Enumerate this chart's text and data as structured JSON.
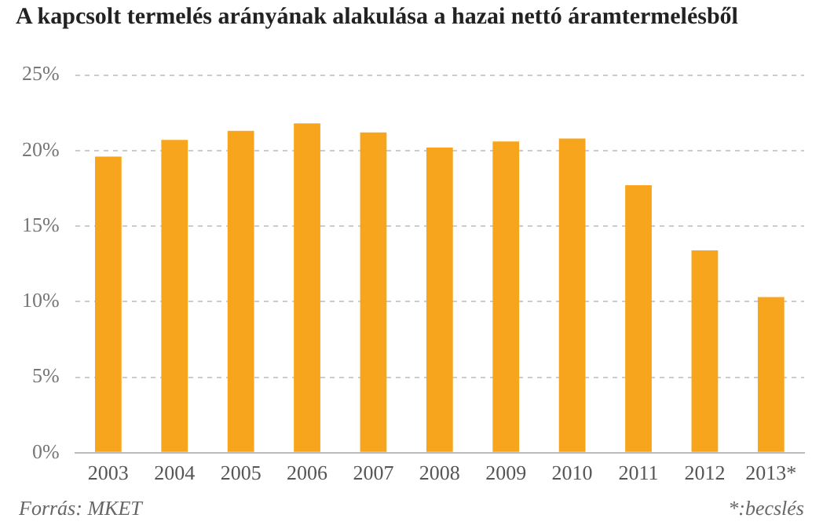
{
  "chart_data": {
    "type": "bar",
    "title": "A kapcsolt termelés arányának alakulása a hazai nettó áramtermelésből",
    "categories": [
      "2003",
      "2004",
      "2005",
      "2006",
      "2007",
      "2008",
      "2009",
      "2010",
      "2011",
      "2012",
      "2013*"
    ],
    "values": [
      19.6,
      20.7,
      21.3,
      21.8,
      21.2,
      20.2,
      20.6,
      20.8,
      17.7,
      13.4,
      10.3
    ],
    "color": "#f7a51d",
    "ylim": [
      0,
      25
    ],
    "yticks": [
      {
        "value": 0,
        "label": "0%"
      },
      {
        "value": 5,
        "label": "5%"
      },
      {
        "value": 10,
        "label": "10%"
      },
      {
        "value": 15,
        "label": "15%"
      },
      {
        "value": 20,
        "label": "20%"
      },
      {
        "value": 25,
        "label": "25%"
      }
    ],
    "grid": "y",
    "annotations": [
      "Forrás: MKET",
      "*:becslés"
    ]
  }
}
